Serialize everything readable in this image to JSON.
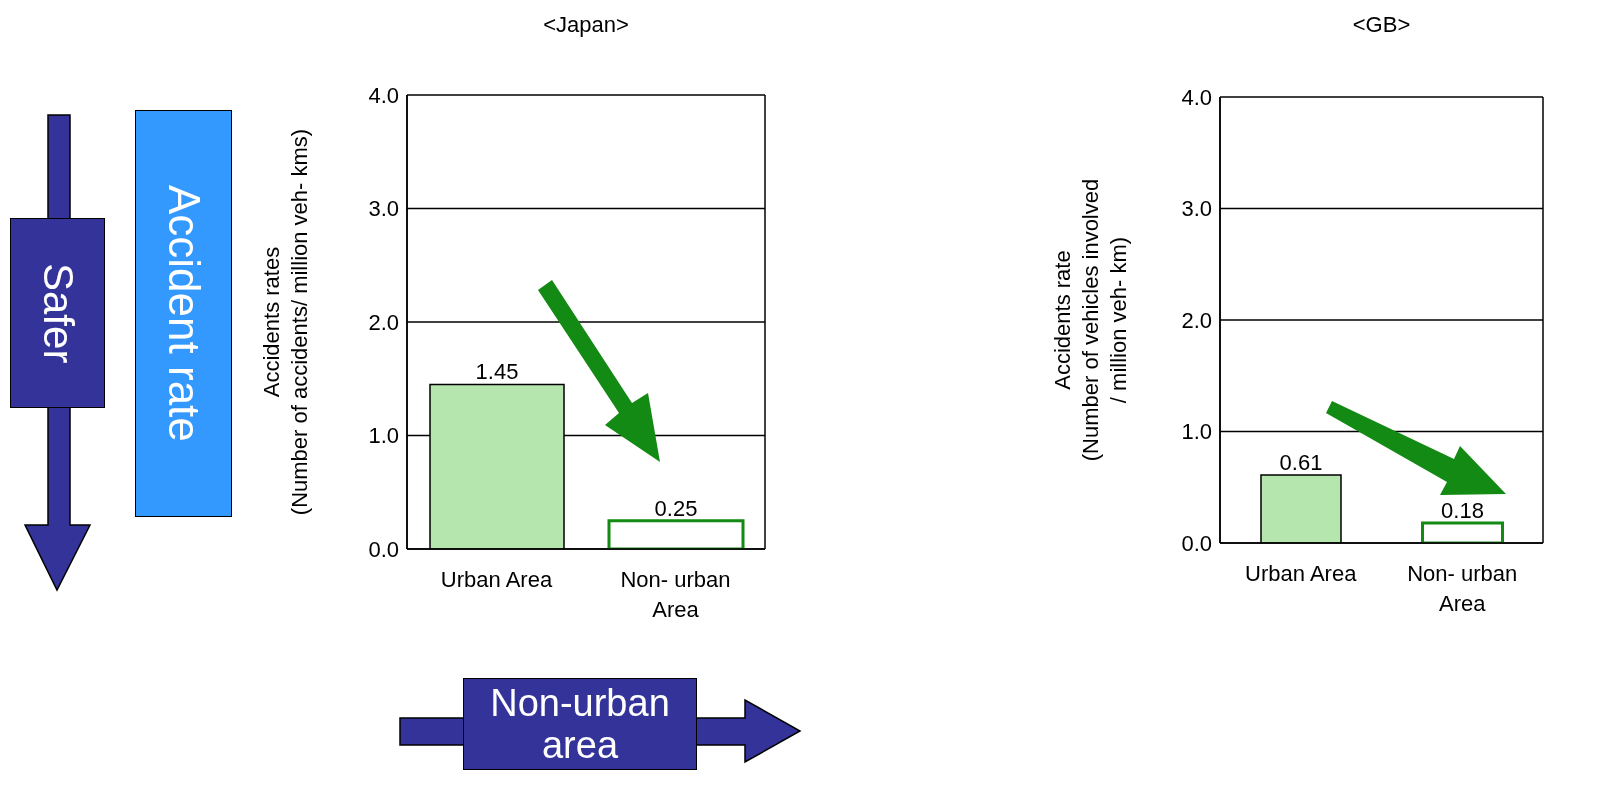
{
  "chart_data": [
    {
      "type": "bar",
      "title": "<Japan>",
      "ylabel": "Accidents rates\n(Number of accidents/ million veh- kms)",
      "categories": [
        "Urban Area",
        "Non- urban Area"
      ],
      "values": [
        1.45,
        0.25
      ],
      "colors": [
        "#b5e6ad",
        "#ffffff"
      ],
      "ylim": [
        0,
        4
      ],
      "yticks": [
        {
          "value": 0,
          "label": "0.0"
        },
        {
          "value": 1,
          "label": "1.0"
        },
        {
          "value": 2,
          "label": "2.0"
        },
        {
          "value": 3,
          "label": "3.0"
        },
        {
          "value": 4,
          "label": "4.0"
        }
      ],
      "grid": "y",
      "data_labels": true,
      "annotations": [
        "Safer",
        "Accident rate",
        "Non-urban area"
      ]
    },
    {
      "type": "bar",
      "title": "<GB>",
      "ylabel": "Accidents rate\n(Number of vehicles involved\n/ million veh- km)",
      "categories": [
        "Urban Area",
        "Non- urban Area"
      ],
      "values": [
        0.61,
        0.18
      ],
      "colors": [
        "#b5e6ad",
        "#ffffff"
      ],
      "ylim": [
        0,
        4
      ],
      "yticks": [
        {
          "value": 0,
          "label": "0.0"
        },
        {
          "value": 1,
          "label": "1.0"
        },
        {
          "value": 2,
          "label": "2.0"
        },
        {
          "value": 3,
          "label": "3.0"
        },
        {
          "value": 4,
          "label": "4.0"
        }
      ],
      "grid": "y",
      "data_labels": true
    }
  ]
}
